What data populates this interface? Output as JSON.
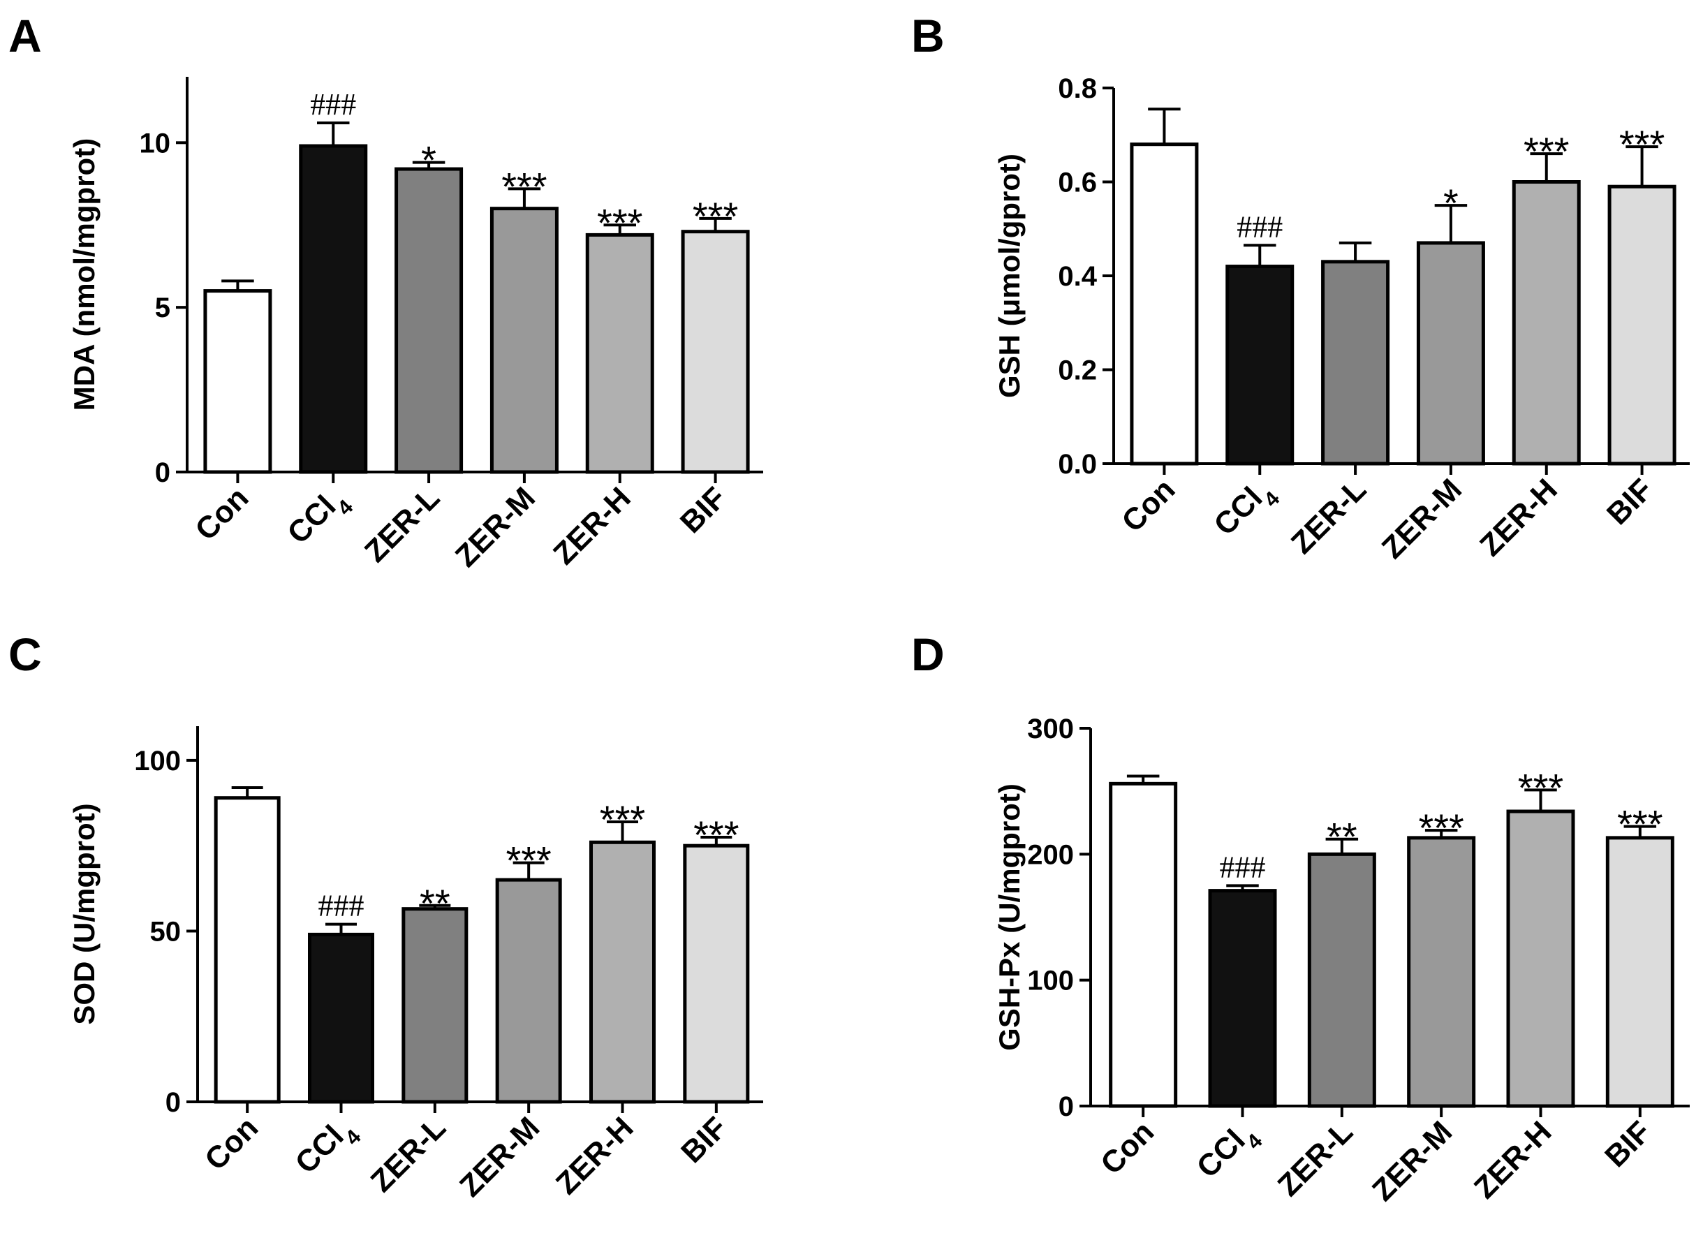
{
  "chart_data": [
    {
      "type": "bar",
      "panel": "A",
      "ylabel": "MDA (nmol/mgprot)",
      "ylim": [
        0,
        12
      ],
      "yticks": [
        0,
        5,
        10
      ],
      "categories": [
        "Con",
        "CCl4",
        "ZER-L",
        "ZER-M",
        "ZER-H",
        "BIF"
      ],
      "values": [
        5.5,
        9.9,
        9.2,
        8.0,
        7.2,
        7.3
      ],
      "errors": [
        0.3,
        0.7,
        0.2,
        0.6,
        0.3,
        0.4
      ],
      "annotations": [
        "",
        "###",
        "*",
        "***",
        "***",
        "***"
      ],
      "colors": [
        "#ffffff",
        "#111111",
        "#808080",
        "#999999",
        "#b0b0b0",
        "#dcdcdc"
      ]
    },
    {
      "type": "bar",
      "panel": "B",
      "ylabel": "GSH (μmol/gprot)",
      "ylim": [
        0,
        0.8
      ],
      "yticks": [
        "0.0",
        "0.2",
        "0.4",
        "0.6",
        "0.8"
      ],
      "categories": [
        "Con",
        "CCl4",
        "ZER-L",
        "ZER-M",
        "ZER-H",
        "BIF"
      ],
      "values": [
        0.68,
        0.42,
        0.43,
        0.47,
        0.6,
        0.59
      ],
      "errors": [
        0.075,
        0.045,
        0.04,
        0.08,
        0.06,
        0.085
      ],
      "annotations": [
        "",
        "###",
        "",
        "*",
        "***",
        "***"
      ],
      "colors": [
        "#ffffff",
        "#111111",
        "#808080",
        "#999999",
        "#b0b0b0",
        "#dcdcdc"
      ]
    },
    {
      "type": "bar",
      "panel": "C",
      "ylabel": "SOD (U/mgprot)",
      "ylim": [
        0,
        110
      ],
      "yticks": [
        0,
        50,
        100
      ],
      "categories": [
        "Con",
        "CCl4",
        "ZER-L",
        "ZER-M",
        "ZER-H",
        "BIF"
      ],
      "values": [
        89,
        49,
        56.5,
        65,
        76,
        75
      ],
      "errors": [
        3,
        3,
        1,
        5,
        6,
        2.5
      ],
      "annotations": [
        "",
        "###",
        "**",
        "***",
        "***",
        "***"
      ],
      "colors": [
        "#ffffff",
        "#111111",
        "#808080",
        "#999999",
        "#b0b0b0",
        "#dcdcdc"
      ]
    },
    {
      "type": "bar",
      "panel": "D",
      "ylabel": "GSH-Px (U/mgprot)",
      "ylim": [
        0,
        300
      ],
      "yticks": [
        0,
        100,
        200,
        300
      ],
      "categories": [
        "Con",
        "CCl4",
        "ZER-L",
        "ZER-M",
        "ZER-H",
        "BIF"
      ],
      "values": [
        256,
        171,
        200,
        213,
        234,
        213
      ],
      "errors": [
        6,
        4,
        12,
        6,
        17,
        9
      ],
      "annotations": [
        "",
        "###",
        "**",
        "***",
        "***",
        "***"
      ],
      "colors": [
        "#ffffff",
        "#111111",
        "#808080",
        "#999999",
        "#b0b0b0",
        "#dcdcdc"
      ]
    }
  ]
}
